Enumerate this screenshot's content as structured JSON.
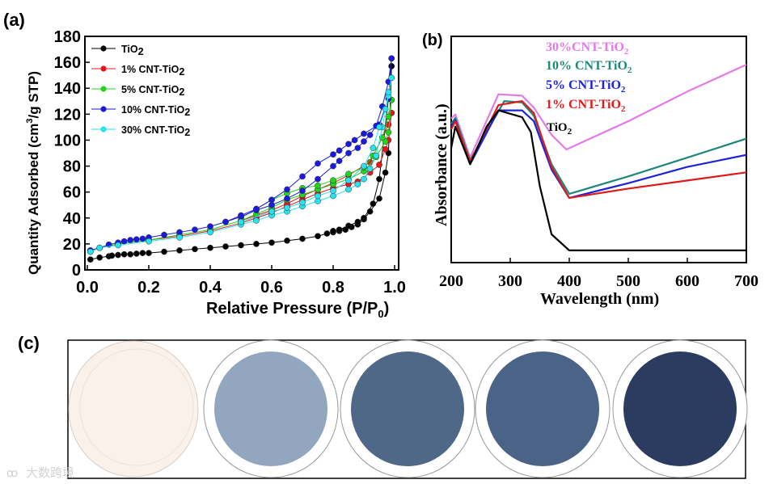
{
  "panel_labels": {
    "a": "(a)",
    "b": "(b)",
    "c": "(c)"
  },
  "watermark": "大数跨境",
  "chart_data": [
    {
      "type": "line",
      "title": "",
      "xlabel": "Relative Pressure (P/P0)",
      "xlabel_main": "Relative Pressure (P/P",
      "xlabel_sub": "0",
      "xlabel_end": ")",
      "ylabel": "Quantity Adsorbed (cm3/g STP)",
      "xlim": [
        0,
        1.0
      ],
      "ylim": [
        0,
        180
      ],
      "xticks": [
        "0.0",
        "0.2",
        "0.4",
        "0.6",
        "0.8",
        "1.0"
      ],
      "yticks": [
        "0",
        "20",
        "40",
        "60",
        "80",
        "100",
        "120",
        "140",
        "160",
        "180"
      ],
      "legend_position": "top-left",
      "grid": false,
      "series": [
        {
          "name": "TiO2",
          "label": "TiO",
          "sub": "2",
          "color": "#000000",
          "adsorption": [
            [
              0.01,
              8
            ],
            [
              0.04,
              9.5
            ],
            [
              0.07,
              10.5
            ],
            [
              0.08,
              11
            ],
            [
              0.1,
              11.5
            ],
            [
              0.12,
              12
            ],
            [
              0.14,
              12
            ],
            [
              0.16,
              12.5
            ],
            [
              0.18,
              13
            ],
            [
              0.2,
              13
            ],
            [
              0.25,
              14
            ],
            [
              0.3,
              15
            ],
            [
              0.35,
              16
            ],
            [
              0.4,
              17
            ],
            [
              0.45,
              18
            ],
            [
              0.5,
              19
            ],
            [
              0.55,
              20
            ],
            [
              0.6,
              21
            ],
            [
              0.65,
              22.5
            ],
            [
              0.7,
              24
            ],
            [
              0.75,
              26
            ],
            [
              0.78,
              28
            ],
            [
              0.8,
              29
            ],
            [
              0.82,
              30
            ],
            [
              0.84,
              31
            ],
            [
              0.86,
              33
            ],
            [
              0.88,
              35
            ],
            [
              0.9,
              39
            ],
            [
              0.92,
              45
            ],
            [
              0.95,
              55
            ],
            [
              0.97,
              75
            ],
            [
              0.98,
              90
            ],
            [
              0.99,
              157
            ]
          ],
          "desorption": [
            [
              0.99,
              157
            ],
            [
              0.98,
              132
            ],
            [
              0.95,
              70
            ],
            [
              0.93,
              51
            ],
            [
              0.9,
              40
            ],
            [
              0.88,
              37
            ],
            [
              0.85,
              34
            ],
            [
              0.82,
              31
            ],
            [
              0.8,
              30
            ]
          ]
        },
        {
          "name": "1% CNT-TiO2",
          "label": "1% CNT-TiO",
          "sub": "2",
          "color": "#e8141c",
          "adsorption": [
            [
              0.01,
              15
            ],
            [
              0.04,
              17
            ],
            [
              0.1,
              20
            ],
            [
              0.2,
              23
            ],
            [
              0.3,
              26
            ],
            [
              0.4,
              30
            ],
            [
              0.5,
              36
            ],
            [
              0.55,
              40
            ],
            [
              0.6,
              44
            ],
            [
              0.65,
              49
            ],
            [
              0.7,
              54
            ],
            [
              0.75,
              59
            ],
            [
              0.8,
              63
            ],
            [
              0.85,
              66
            ],
            [
              0.88,
              68
            ],
            [
              0.92,
              75
            ],
            [
              0.95,
              81
            ],
            [
              0.97,
              93
            ],
            [
              0.98,
              100
            ],
            [
              0.99,
              121
            ]
          ],
          "desorption": [
            [
              0.99,
              121
            ],
            [
              0.98,
              112
            ],
            [
              0.96,
              102
            ],
            [
              0.92,
              83
            ],
            [
              0.85,
              73
            ],
            [
              0.8,
              67
            ],
            [
              0.75,
              62
            ],
            [
              0.7,
              57
            ],
            [
              0.65,
              51
            ],
            [
              0.6,
              46
            ],
            [
              0.5,
              38
            ]
          ]
        },
        {
          "name": "5% CNT-TiO2",
          "label": "5% CNT-TiO",
          "sub": "2",
          "color": "#22d41e",
          "adsorption": [
            [
              0.01,
              14
            ],
            [
              0.04,
              17
            ],
            [
              0.1,
              20
            ],
            [
              0.2,
              23
            ],
            [
              0.3,
              27
            ],
            [
              0.4,
              31
            ],
            [
              0.5,
              38
            ],
            [
              0.55,
              43
            ],
            [
              0.6,
              48
            ],
            [
              0.65,
              54
            ],
            [
              0.7,
              58
            ],
            [
              0.75,
              62
            ],
            [
              0.8,
              66
            ],
            [
              0.85,
              70
            ],
            [
              0.9,
              76
            ],
            [
              0.94,
              87
            ],
            [
              0.97,
              99
            ],
            [
              0.98,
              106
            ],
            [
              0.99,
              131
            ]
          ],
          "desorption": [
            [
              0.99,
              131
            ],
            [
              0.98,
              118
            ],
            [
              0.96,
              102
            ],
            [
              0.93,
              88
            ],
            [
              0.9,
              79
            ],
            [
              0.85,
              74
            ],
            [
              0.8,
              69
            ],
            [
              0.75,
              65
            ],
            [
              0.7,
              63
            ],
            [
              0.65,
              59
            ],
            [
              0.6,
              54
            ],
            [
              0.55,
              47
            ],
            [
              0.5,
              40
            ]
          ]
        },
        {
          "name": "10% CNT-TiO2",
          "label": "10% CNT-TiO",
          "sub": "2",
          "color": "#1a1adf",
          "adsorption": [
            [
              0.01,
              15
            ],
            [
              0.04,
              17
            ],
            [
              0.07,
              19.5
            ],
            [
              0.1,
              21
            ],
            [
              0.12,
              22
            ],
            [
              0.14,
              23
            ],
            [
              0.16,
              23.5
            ],
            [
              0.18,
              24
            ],
            [
              0.2,
              25
            ],
            [
              0.25,
              27
            ],
            [
              0.3,
              29
            ],
            [
              0.35,
              31
            ],
            [
              0.4,
              33.5
            ],
            [
              0.45,
              37
            ],
            [
              0.5,
              41
            ],
            [
              0.55,
              46
            ],
            [
              0.6,
              50
            ],
            [
              0.65,
              55
            ],
            [
              0.7,
              61
            ],
            [
              0.75,
              70
            ],
            [
              0.8,
              80
            ],
            [
              0.82,
              84
            ],
            [
              0.85,
              90
            ],
            [
              0.88,
              94
            ],
            [
              0.9,
              99
            ],
            [
              0.92,
              104
            ],
            [
              0.94,
              111
            ],
            [
              0.96,
              126
            ],
            [
              0.98,
              145
            ],
            [
              0.99,
              163
            ]
          ],
          "desorption": [
            [
              0.99,
              163
            ],
            [
              0.98,
              132
            ],
            [
              0.95,
              112
            ],
            [
              0.9,
              105
            ],
            [
              0.87,
              100
            ],
            [
              0.85,
              97
            ],
            [
              0.82,
              92
            ],
            [
              0.8,
              89
            ],
            [
              0.75,
              82
            ],
            [
              0.7,
              72
            ],
            [
              0.65,
              62
            ],
            [
              0.6,
              54
            ],
            [
              0.55,
              47
            ],
            [
              0.5,
              42
            ],
            [
              0.45,
              37
            ]
          ]
        },
        {
          "name": "30% CNT-TiO2",
          "label": "30% CNT-TiO",
          "sub": "2",
          "color": "#27e3f0",
          "adsorption": [
            [
              0.01,
              14
            ],
            [
              0.04,
              17
            ],
            [
              0.1,
              19
            ],
            [
              0.2,
              22
            ],
            [
              0.3,
              25
            ],
            [
              0.4,
              29
            ],
            [
              0.5,
              35
            ],
            [
              0.55,
              38
            ],
            [
              0.6,
              42
            ],
            [
              0.65,
              45
            ],
            [
              0.7,
              49
            ],
            [
              0.75,
              53
            ],
            [
              0.8,
              57
            ],
            [
              0.85,
              62
            ],
            [
              0.88,
              66
            ],
            [
              0.9,
              70
            ],
            [
              0.92,
              78
            ],
            [
              0.94,
              88
            ],
            [
              0.96,
              110
            ],
            [
              0.98,
              134
            ],
            [
              0.99,
              148
            ]
          ],
          "desorption": [
            [
              0.99,
              148
            ],
            [
              0.98,
              137
            ],
            [
              0.97,
              124
            ],
            [
              0.95,
              110
            ],
            [
              0.93,
              94
            ],
            [
              0.9,
              80
            ],
            [
              0.85,
              69
            ],
            [
              0.8,
              61
            ],
            [
              0.75,
              57
            ],
            [
              0.7,
              52
            ],
            [
              0.65,
              48
            ],
            [
              0.6,
              45
            ],
            [
              0.5,
              37
            ]
          ]
        }
      ]
    },
    {
      "type": "line",
      "title": "",
      "xlabel": "Wavelength (nm)",
      "ylabel": "Absorbance (a.u.)",
      "xlim": [
        200,
        700
      ],
      "ylim": [
        0,
        1
      ],
      "xticks": [
        "200",
        "300",
        "400",
        "500",
        "600",
        "700"
      ],
      "legend_position": "top-center",
      "grid": false,
      "series": [
        {
          "name": "30%CNT-TiO2",
          "label": "30%CNT-TiO",
          "sub": "2",
          "color": "#e27ae8",
          "x": [
            200,
            207,
            232,
            280,
            320,
            340,
            370,
            395,
            500,
            600,
            700
          ],
          "y": [
            0.637,
            0.655,
            0.464,
            0.744,
            0.738,
            0.685,
            0.565,
            0.5,
            0.625,
            0.756,
            0.875
          ]
        },
        {
          "name": "10% CNT-TiO2",
          "label": "10% CNT-TiO",
          "sub": "2",
          "color": "#1e8878",
          "x": [
            200,
            207,
            232,
            290,
            320,
            340,
            370,
            400,
            500,
            600,
            700
          ],
          "y": [
            0.613,
            0.64,
            0.452,
            0.714,
            0.708,
            0.649,
            0.435,
            0.304,
            0.381,
            0.464,
            0.548
          ]
        },
        {
          "name": "5% CNT-TiO2",
          "label": "5% CNT-TiO",
          "sub": "2",
          "color": "#1c22d8",
          "x": [
            200,
            207,
            232,
            280,
            320,
            340,
            370,
            400,
            500,
            600,
            700
          ],
          "y": [
            0.601,
            0.63,
            0.435,
            0.673,
            0.673,
            0.625,
            0.411,
            0.286,
            0.351,
            0.423,
            0.476
          ]
        },
        {
          "name": "1% CNT-TiO2",
          "label": "1% CNT-TiO",
          "sub": "2",
          "color": "#e01a1a",
          "x": [
            200,
            207,
            232,
            280,
            320,
            340,
            370,
            400,
            500,
            600,
            700
          ],
          "y": [
            0.589,
            0.625,
            0.446,
            0.696,
            0.714,
            0.661,
            0.423,
            0.286,
            0.327,
            0.363,
            0.399
          ]
        },
        {
          "name": "TiO2",
          "label": "TiO",
          "sub": "2",
          "color": "#000000",
          "x": [
            200,
            207,
            232,
            260,
            280,
            320,
            335,
            350,
            370,
            400,
            700
          ],
          "y": [
            0.506,
            0.601,
            0.435,
            0.601,
            0.673,
            0.643,
            0.577,
            0.339,
            0.125,
            0.054,
            0.054
          ]
        }
      ]
    }
  ],
  "samples": [
    {
      "name": "TiO2",
      "color": "#f9f1ea"
    },
    {
      "name": "1% CNT-TiO2",
      "color": "#93a6c0"
    },
    {
      "name": "5% CNT-TiO2",
      "color": "#4f6888"
    },
    {
      "name": "10% CNT-TiO2",
      "color": "#4a6386"
    },
    {
      "name": "30% CNT-TiO2",
      "color": "#2c3c60"
    }
  ]
}
